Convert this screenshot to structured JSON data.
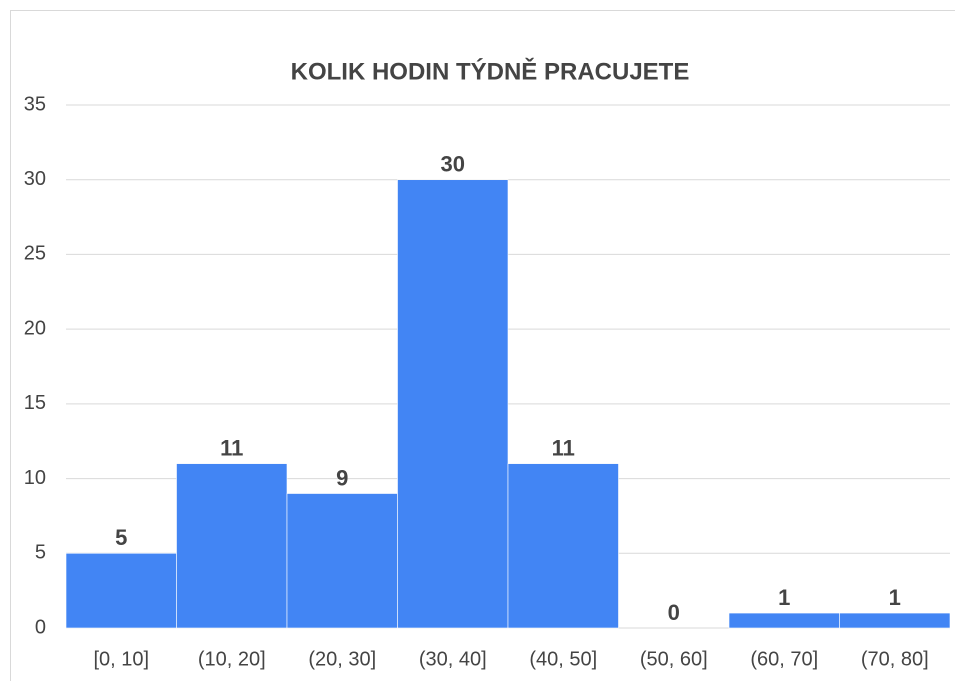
{
  "chart_data": {
    "type": "bar",
    "title": "KOLIK HODIN TÝDNĚ PRACUJETE",
    "categories": [
      "[0, 10]",
      "(10, 20]",
      "(20, 30]",
      "(30, 40]",
      "(40, 50]",
      "(50, 60]",
      "(60, 70]",
      "(70, 80]"
    ],
    "values": [
      5,
      11,
      9,
      30,
      11,
      0,
      1,
      1
    ],
    "color": "#4285f4",
    "ylim": [
      0,
      35
    ],
    "yticks": [
      0,
      5,
      10,
      15,
      20,
      25,
      30,
      35
    ],
    "grid": true
  }
}
